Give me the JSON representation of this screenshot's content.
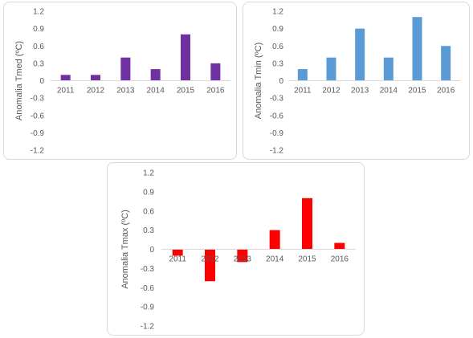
{
  "chart_data": [
    {
      "type": "bar",
      "categories": [
        "2011",
        "2012",
        "2013",
        "2014",
        "2015",
        "2016"
      ],
      "values": [
        0.1,
        0.1,
        0.4,
        0.2,
        0.8,
        0.3
      ],
      "title": "",
      "xlabel": "",
      "ylabel": "Anomalia Tmed (ºC)",
      "ylim": [
        -1.2,
        1.2
      ],
      "yticks": [
        "1.2",
        "0.9",
        "0.6",
        "0.3",
        "0",
        "-0.3",
        "-0.6",
        "-0.9",
        "-1.2"
      ],
      "color": "#7030A0",
      "grid": false,
      "legend": "none"
    },
    {
      "type": "bar",
      "categories": [
        "2011",
        "2012",
        "2013",
        "2014",
        "2015",
        "2016"
      ],
      "values": [
        0.2,
        0.4,
        0.9,
        0.4,
        1.1,
        0.6
      ],
      "title": "",
      "xlabel": "",
      "ylabel": "Anomalia Tmin (ºC)",
      "ylim": [
        -1.2,
        1.2
      ],
      "yticks": [
        "1.2",
        "0.9",
        "0.6",
        "0.3",
        "0",
        "-0.3",
        "-0.6",
        "-0.9",
        "-1.2"
      ],
      "color": "#5B9BD5",
      "grid": false,
      "legend": "none"
    },
    {
      "type": "bar",
      "categories": [
        "2011",
        "2012",
        "2013",
        "2014",
        "2015",
        "2016"
      ],
      "values": [
        -0.1,
        -0.5,
        -0.2,
        0.3,
        0.8,
        0.1
      ],
      "title": "",
      "xlabel": "",
      "ylabel": "Anomalia Tmax (ºC)",
      "ylim": [
        -1.2,
        1.2
      ],
      "yticks": [
        "1.2",
        "0.9",
        "0.6",
        "0.3",
        "0",
        "-0.3",
        "-0.6",
        "-0.9",
        "-1.2"
      ],
      "color": "#FF0000",
      "grid": false,
      "legend": "none"
    }
  ]
}
